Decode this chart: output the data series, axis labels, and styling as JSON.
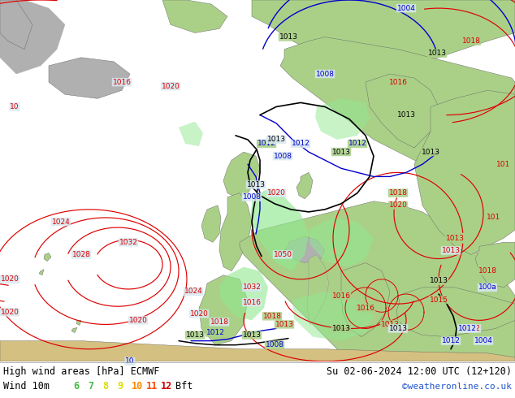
{
  "title_left": "High wind areas [hPa] ECMWF",
  "title_right": "Su 02-06-2024 12:00 UTC (12+120)",
  "legend_label": "Wind 10m",
  "legend_values": [
    "6",
    "7",
    "8",
    "9",
    "10",
    "11",
    "12"
  ],
  "legend_colors": [
    "#44bb44",
    "#44bb44",
    "#dddd00",
    "#dddd00",
    "#ff8800",
    "#ff4400",
    "#cc0000"
  ],
  "legend_suffix": "Bft",
  "credit": "©weatheronline.co.uk",
  "credit_color": "#2255cc",
  "ocean_color": "#d8e8f0",
  "land_color": "#aad088",
  "land_color2": "#c8e0a0",
  "mountain_color": "#b0b0b0",
  "footer_bg": "#ffffff",
  "title_color": "#000000",
  "isobar_red": "#dd0000",
  "isobar_blue": "#0000cc",
  "isobar_black": "#000000",
  "wind_shade": "#90e890",
  "fig_width": 6.34,
  "fig_height": 4.9,
  "dpi": 100
}
